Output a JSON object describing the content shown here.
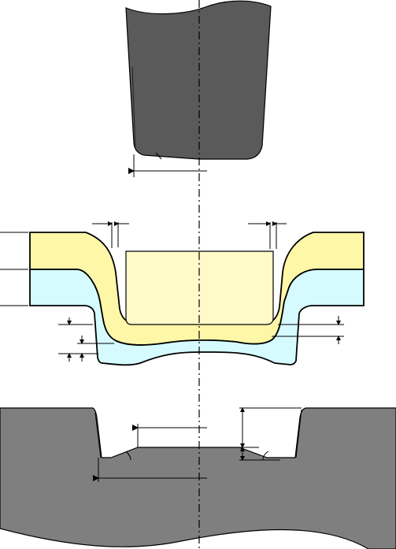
{
  "diagram": {
    "colors": {
      "background": "#ffffff",
      "punch_fill": "#5a5a5a",
      "die_fill": "#7f7f7f",
      "upper_layer_fill": "#fff7a8",
      "lower_layer_fill": "#d6fbff",
      "inner_cup_fill": "#fffac8",
      "line_color": "#000000",
      "centerline_color": "#000000"
    },
    "parts": [
      {
        "name": "punch",
        "description_visible": false
      },
      {
        "name": "upper-sheet-layer",
        "description_visible": false
      },
      {
        "name": "lower-sheet-layer",
        "description_visible": false
      },
      {
        "name": "die",
        "description_visible": false
      }
    ]
  }
}
